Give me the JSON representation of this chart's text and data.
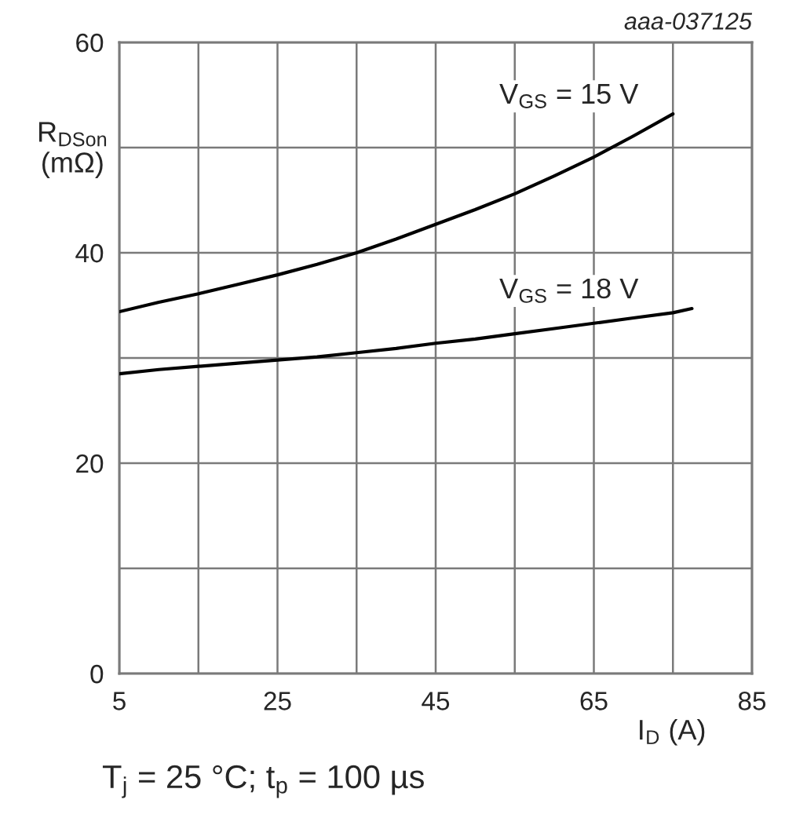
{
  "chart_data": {
    "type": "line",
    "xlabel": "I$_{D}$ (A)",
    "ylabel": "R$_{DSon}$\n(mΩ)",
    "annotations": [
      "aaa-037125",
      "T$_{j}$ = 25 °C; t$_{p}$ = 100 µs"
    ],
    "xlim": [
      5,
      85
    ],
    "ylim": [
      0,
      60
    ],
    "xticks": [
      5,
      {
        "value": 15,
        "label": null
      },
      25,
      {
        "value": 35,
        "label": null
      },
      45,
      {
        "value": 55,
        "label": null
      },
      65,
      {
        "value": 75,
        "label": null
      },
      85
    ],
    "yticks": [
      0,
      {
        "value": 10,
        "label": null
      },
      20,
      {
        "value": 30,
        "label": null
      },
      40,
      {
        "value": 50,
        "label": null
      },
      60
    ],
    "grid": true,
    "line_style": "solid",
    "series": [
      {
        "name": "V$_{GS}$ = 15 V",
        "color": "#000000",
        "x": [
          5,
          10,
          15,
          20,
          25,
          30,
          35,
          40,
          45,
          50,
          55,
          60,
          65,
          70,
          75
        ],
        "values": [
          34.4,
          35.3,
          36.1,
          37.0,
          37.9,
          38.9,
          40.0,
          41.3,
          42.7,
          44.1,
          45.6,
          47.3,
          49.1,
          51.1,
          53.2
        ]
      },
      {
        "name": "V$_{GS}$ = 18 V",
        "color": "#000000",
        "x": [
          5,
          10,
          15,
          20,
          25,
          30,
          35,
          40,
          45,
          50,
          55,
          60,
          65,
          70,
          75,
          77.4
        ],
        "values": [
          28.5,
          28.9,
          29.2,
          29.5,
          29.8,
          30.1,
          30.5,
          30.9,
          31.4,
          31.8,
          32.3,
          32.8,
          33.3,
          33.8,
          34.3,
          34.7
        ]
      }
    ]
  }
}
